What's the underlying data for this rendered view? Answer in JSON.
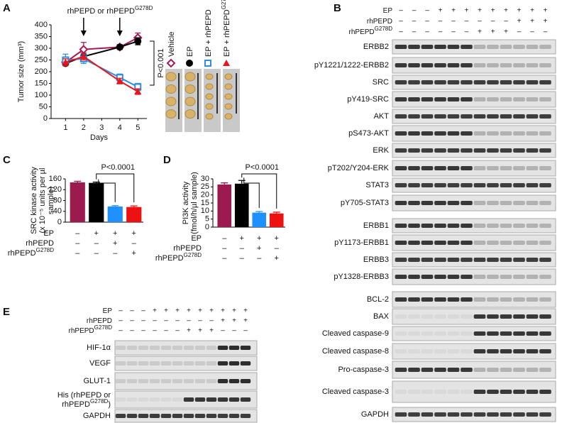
{
  "panel_labels": [
    "A",
    "B",
    "C",
    "D",
    "E"
  ],
  "chart_data": [
    {
      "type": "line",
      "panel": "A",
      "annotation": {
        "label": "rhPEPD or rhPEPD",
        "label_sup": "G278D"
      },
      "pvalue": "P<0.001",
      "ylabel": "Tumor size (mm³)",
      "xlabel": "Days",
      "x": [
        1,
        2,
        4,
        5
      ],
      "xlim": [
        0.2,
        5.5
      ],
      "xticks": [
        1,
        2,
        3,
        4,
        5
      ],
      "ylim": [
        0,
        400
      ],
      "yticks": [
        0,
        50,
        100,
        150,
        200,
        250,
        300,
        350,
        400
      ],
      "series": [
        {
          "name": "Vehicle",
          "color": "#a3195b",
          "marker": "diamond-open",
          "values": [
            240,
            295,
            305,
            345
          ],
          "errors": [
            15,
            30,
            10,
            20
          ]
        },
        {
          "name": "EP",
          "color": "#000000",
          "marker": "circle",
          "values": [
            235,
            265,
            305,
            330
          ],
          "errors": [
            10,
            15,
            10,
            15
          ]
        },
        {
          "name": "EP + rhPEPD",
          "color": "#2e8fe0",
          "marker": "square-open",
          "values": [
            250,
            255,
            175,
            135
          ],
          "errors": [
            25,
            20,
            15,
            15
          ]
        },
        {
          "name": "EP + rhPEPD",
          "name_sup": "G278D",
          "color": "#e8151b",
          "marker": "triangle",
          "values": [
            240,
            265,
            160,
            115
          ],
          "errors": [
            15,
            15,
            12,
            12
          ]
        }
      ]
    },
    {
      "type": "bar",
      "panel": "C",
      "ylabel_lines": [
        "SRC kinase activity",
        "(x 10⁻⁵ units per µl",
        "sample)"
      ],
      "pvalue": "P<0.0001",
      "values": [
        147,
        145,
        58,
        56
      ],
      "errors": [
        4,
        3,
        3,
        4
      ],
      "colors": [
        "#9b1b4f",
        "#000000",
        "#1e90ff",
        "#ee1111"
      ],
      "ylim": [
        0,
        160
      ],
      "yticks": [
        0,
        40,
        80,
        120,
        160
      ],
      "conditions": [
        {
          "label": "EP",
          "values": [
            "–",
            "+",
            "+",
            "+"
          ]
        },
        {
          "label": "rhPEPD",
          "values": [
            "–",
            "–",
            "+",
            "–"
          ]
        },
        {
          "label": "rhPEPD",
          "label_sup": "G278D",
          "values": [
            "–",
            "–",
            "–",
            "+"
          ]
        }
      ]
    },
    {
      "type": "bar",
      "panel": "D",
      "ylabel_lines": [
        "PI3K activity",
        "(fmol/h/µl sample)"
      ],
      "pvalue": "P<0.0001",
      "values": [
        26.5,
        27,
        9,
        8.5
      ],
      "errors": [
        1,
        2,
        0.7,
        0.8
      ],
      "colors": [
        "#9b1b4f",
        "#000000",
        "#1e90ff",
        "#ee1111"
      ],
      "ylim": [
        0,
        30
      ],
      "yticks": [
        0,
        5,
        10,
        15,
        20,
        25,
        30
      ],
      "conditions": [
        {
          "label": "EP",
          "values": [
            "–",
            "+",
            "+",
            "+"
          ]
        },
        {
          "label": "rhPEPD",
          "values": [
            "–",
            "–",
            "+",
            "–"
          ]
        },
        {
          "label": "rhPEPD",
          "label_sup": "G278D",
          "values": [
            "–",
            "–",
            "–",
            "+"
          ]
        }
      ]
    }
  ],
  "blot_B": {
    "conditions": [
      {
        "label": "EP",
        "values": [
          "–",
          "–",
          "–",
          "+",
          "+",
          "+",
          "+",
          "+",
          "+",
          "+",
          "+",
          "+"
        ]
      },
      {
        "label": "rhPEPD",
        "values": [
          "–",
          "–",
          "–",
          "–",
          "–",
          "–",
          "–",
          "–",
          "–",
          "+",
          "+",
          "+"
        ]
      },
      {
        "label": "rhPEPD",
        "label_sup": "G278D",
        "values": [
          "–",
          "–",
          "–",
          "–",
          "–",
          "–",
          "+",
          "+",
          "+",
          "–",
          "–",
          "–"
        ]
      }
    ],
    "rows": [
      {
        "label": "ERBB2"
      },
      {
        "label": "pY1221/1222-ERBB2"
      },
      {
        "label": "SRC"
      },
      {
        "label": "pY419-SRC"
      },
      {
        "label": "AKT"
      },
      {
        "label": "pS473-AKT"
      },
      {
        "label": "ERK"
      },
      {
        "label": "pT202/Y204-ERK"
      },
      {
        "label": "STAT3"
      },
      {
        "label": "pY705-STAT3"
      },
      {
        "label": "ERBB1"
      },
      {
        "label": "pY1173-ERBB1"
      },
      {
        "label": "ERBB3"
      },
      {
        "label": "pY1328-ERBB3"
      },
      {
        "label": "BCL-2"
      },
      {
        "label": "BAX"
      },
      {
        "label": "Cleaved caspase-9"
      },
      {
        "label": "Cleaved caspase-8"
      },
      {
        "label": "Pro-caspase-3"
      },
      {
        "label": "Cleaved caspase-3"
      },
      {
        "label": "GAPDH"
      }
    ]
  },
  "blot_E": {
    "conditions": [
      {
        "label": "EP",
        "values": [
          "–",
          "–",
          "–",
          "+",
          "+",
          "+",
          "+",
          "+",
          "+",
          "+",
          "+",
          "+"
        ]
      },
      {
        "label": "rhPEPD",
        "values": [
          "–",
          "–",
          "–",
          "–",
          "–",
          "–",
          "–",
          "–",
          "–",
          "+",
          "+",
          "+"
        ]
      },
      {
        "label": "rhPEPD",
        "label_sup": "G278D",
        "values": [
          "–",
          "–",
          "–",
          "–",
          "–",
          "–",
          "+",
          "+",
          "+",
          "–",
          "–",
          "–"
        ]
      }
    ],
    "rows": [
      {
        "label": "HIF-1α"
      },
      {
        "label": "VEGF"
      },
      {
        "label": "GLUT-1"
      },
      {
        "label": "His (rhPEPD or",
        "label2": "rhPEPD",
        "label2_sup": "G278D",
        "label2_end": ")"
      },
      {
        "label": "GAPDH"
      }
    ]
  }
}
